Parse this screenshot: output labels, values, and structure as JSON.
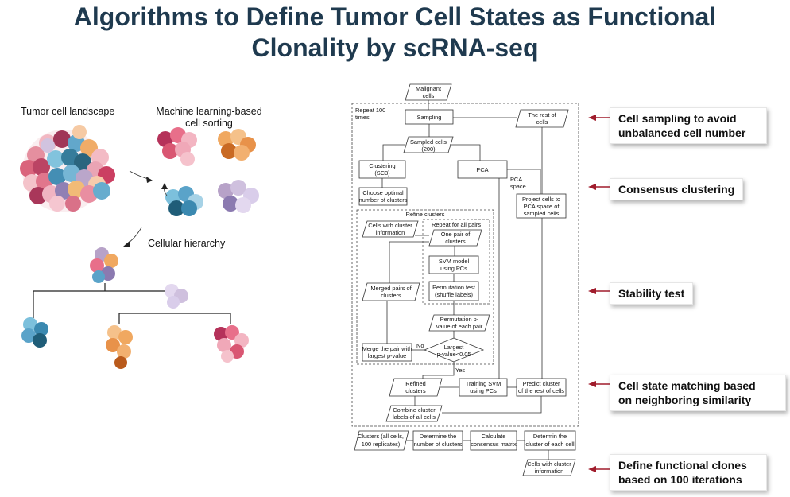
{
  "title": {
    "line1": "Algorithms to Define Tumor Cell States as Functional",
    "line2": "Clonality by scRNA-seq"
  },
  "left_panel": {
    "landscape_label": "Tumor cell landscape",
    "ml_label_line1": "Machine learning-based",
    "ml_label_line2": "cell sorting",
    "hierarchy_label": "Cellular hierarchy"
  },
  "flowchart": {
    "malignant": [
      "Malignant",
      "cells"
    ],
    "repeat100": [
      "Repeat 100",
      "times"
    ],
    "sampling": "Sampling",
    "rest": [
      "The rest of",
      "cells"
    ],
    "sampled": [
      "Sampled cells",
      "(200)"
    ],
    "clustering": [
      "Clustering",
      "(SC3)"
    ],
    "pca": "PCA",
    "pca_space": [
      "PCA",
      "space"
    ],
    "choose": [
      "Choose optimal",
      "number of clusters"
    ],
    "project": [
      "Project cells to",
      "PCA space of",
      "sampled cells"
    ],
    "refine": "Refine clusters",
    "cells_info": [
      "Cells with cluster",
      "information"
    ],
    "repeat_pairs": "Repeat for all pairs",
    "one_pair": [
      "One pair of",
      "clusters"
    ],
    "svm": [
      "SVM  model",
      "using PCs"
    ],
    "merged": [
      "Merged pairs of",
      "clusters"
    ],
    "perm_test": [
      "Permutation test",
      "(shuffle labels)"
    ],
    "perm_p": [
      "Permutation p-",
      "value of each pair"
    ],
    "largest": [
      "Largest",
      "p-value<0.05"
    ],
    "merge": [
      "Merge the pair with",
      "largest p-value"
    ],
    "no": "No",
    "yes": "Yes",
    "refined": [
      "Refined",
      "clusters"
    ],
    "training": [
      "Training SVM",
      "using PCs"
    ],
    "predict": [
      "Predict cluster",
      "of the rest of cells"
    ],
    "combine": [
      "Combine cluster",
      "labels of all cells"
    ],
    "clusters_all": [
      "Clusters (all cells,",
      "100  replicates)"
    ],
    "determine_num": [
      "Determine the",
      "number of clusters"
    ],
    "calculate": [
      "Calculate",
      "consensus matrix"
    ],
    "determin_cluster": [
      "Determin the",
      "cluster of each cell"
    ],
    "cells_info_out": [
      "Cells with cluster",
      "information"
    ]
  },
  "callouts": {
    "c1": [
      "Cell sampling to avoid",
      "unbalanced cell number"
    ],
    "c2": "Consensus clustering",
    "c3": "Stability test",
    "c4": [
      "Cell state matching based",
      "on neighboring similarity"
    ],
    "c5": [
      "Define functional clones",
      "based on 100 iterations"
    ]
  },
  "colors": {
    "title": "#1f3a4f",
    "accent_red": "#a01c2c"
  }
}
